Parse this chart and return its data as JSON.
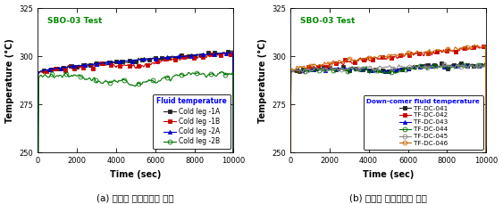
{
  "fig_width": 5.63,
  "fig_height": 2.29,
  "dpi": 100,
  "subplot_label_a": "(a) 저온관 유체온도의 변화",
  "subplot_label_b": "(b) 강수부 유체온도의 변화",
  "sbo_test_label": "SBO-03 Test",
  "sbo_color": "#008800",
  "xlim": [
    0,
    10000
  ],
  "ylim": [
    250,
    325
  ],
  "yticks": [
    250,
    275,
    300,
    325
  ],
  "xticks": [
    0,
    2000,
    4000,
    6000,
    8000,
    10000
  ],
  "xlabel": "Time (sec)",
  "ylabel": "Temperature (°C)",
  "plot_a": {
    "legend_title": "Fluid temperature",
    "legend_title_color": "blue",
    "series": [
      {
        "label": "Cold leg -1A",
        "color": "#222222",
        "marker": "s",
        "fillstyle": "full",
        "lw": 0.8
      },
      {
        "label": "Cold leg -1B",
        "color": "#cc0000",
        "marker": "s",
        "fillstyle": "full",
        "lw": 0.8
      },
      {
        "label": "Cold leg -2A",
        "color": "#0000cc",
        "marker": "^",
        "fillstyle": "full",
        "lw": 0.8
      },
      {
        "label": "Cold leg -2B",
        "color": "#007700",
        "marker": "o",
        "fillstyle": "none",
        "lw": 0.8
      }
    ]
  },
  "plot_b": {
    "legend_title": "Down-comer fluid temperature",
    "legend_title_color": "blue",
    "series": [
      {
        "label": "TF-DC-041",
        "color": "#222222",
        "marker": "s",
        "fillstyle": "full",
        "lw": 0.8
      },
      {
        "label": "TF-DC-042",
        "color": "#cc0000",
        "marker": "s",
        "fillstyle": "full",
        "lw": 0.8
      },
      {
        "label": "TF-DC-043",
        "color": "#0000cc",
        "marker": "^",
        "fillstyle": "full",
        "lw": 0.8
      },
      {
        "label": "TF-DC-044",
        "color": "#007700",
        "marker": "o",
        "fillstyle": "none",
        "lw": 0.8
      },
      {
        "label": "TF-DC-045",
        "color": "#888888",
        "marker": "o",
        "fillstyle": "none",
        "lw": 0.8
      },
      {
        "label": "TF-DC-046",
        "color": "#cc6600",
        "marker": "o",
        "fillstyle": "none",
        "lw": 0.8
      }
    ]
  },
  "background_color": "#ffffff"
}
